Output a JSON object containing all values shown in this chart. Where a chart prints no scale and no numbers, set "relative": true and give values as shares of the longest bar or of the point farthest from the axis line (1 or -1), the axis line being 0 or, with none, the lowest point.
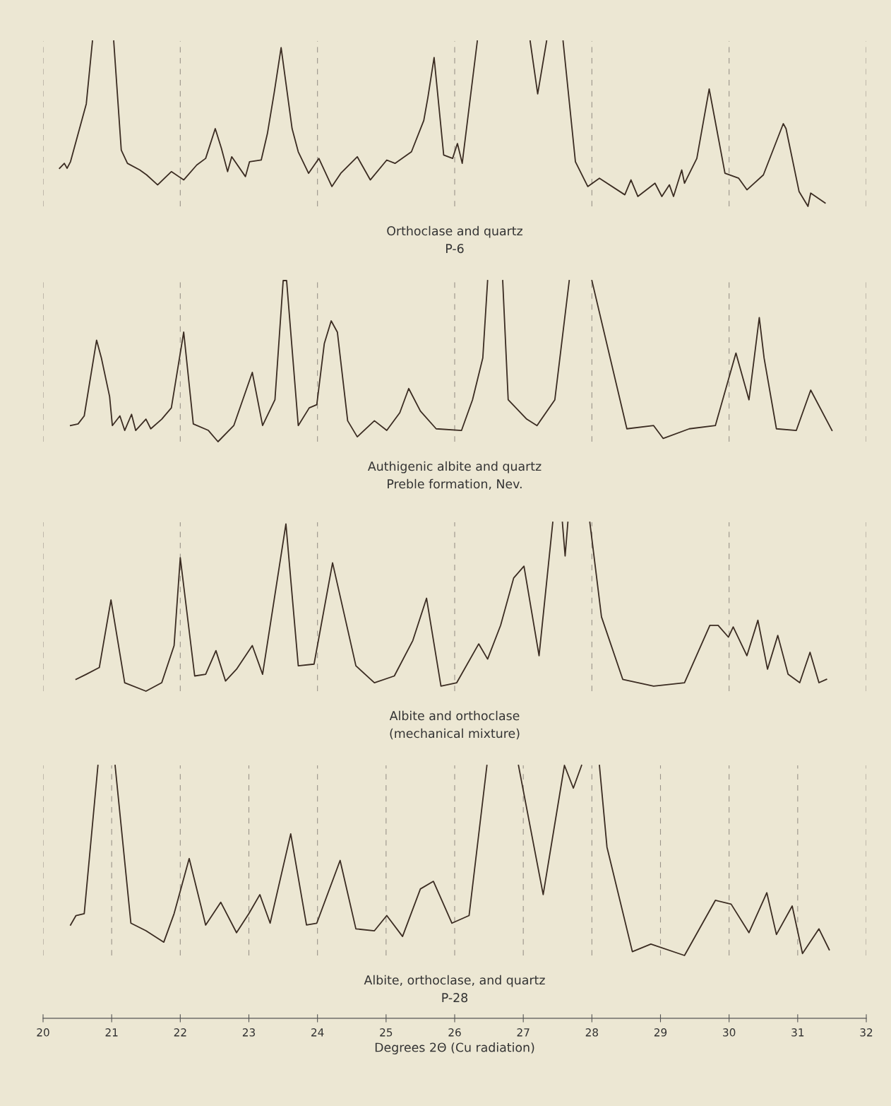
{
  "chart_data": [
    {
      "type": "line",
      "relative": true,
      "title": "Orthoclase and quartz",
      "subtitle": "P-6",
      "xlim": [
        20,
        32
      ],
      "xticks": [
        20,
        22,
        24,
        26,
        28,
        30,
        32
      ],
      "tick_labels": false,
      "grid": "x",
      "marker": "none",
      "line_style": "solid",
      "series": [
        {
          "color": "#3b2c22",
          "x": [
            20.24,
            20.31,
            20.35,
            20.4,
            20.63,
            20.72,
            20.9,
            21.03,
            21.14,
            21.23,
            21.41,
            21.51,
            21.67,
            21.87,
            22.05,
            22.24,
            22.37,
            22.51,
            22.6,
            22.69,
            22.75,
            22.95,
            23.01,
            23.18,
            23.27,
            23.37,
            23.47,
            23.63,
            23.72,
            23.87,
            24.02,
            24.21,
            24.34,
            24.58,
            24.77,
            25.01,
            25.13,
            25.37,
            25.55,
            25.61,
            25.7,
            25.84,
            25.97,
            26.04,
            26.11,
            26.33,
            26.9,
            27.1,
            27.21,
            27.34,
            27.45,
            27.58,
            27.76,
            27.94,
            28.11,
            28.48,
            28.57,
            28.67,
            28.92,
            29.02,
            29.13,
            29.19,
            29.31,
            29.35,
            29.53,
            29.71,
            29.94,
            30.14,
            30.26,
            30.5,
            30.79,
            30.83,
            31.02,
            31.15,
            31.19,
            31.4
          ],
          "values": [
            0.23,
            0.26,
            0.23,
            0.27,
            0.62,
            1.0,
            null,
            1.0,
            0.34,
            0.26,
            0.22,
            0.19,
            0.13,
            0.21,
            0.16,
            0.25,
            0.29,
            0.47,
            0.35,
            0.21,
            0.3,
            0.18,
            0.27,
            0.28,
            0.44,
            0.69,
            0.96,
            0.47,
            0.33,
            0.2,
            0.29,
            0.12,
            0.2,
            0.3,
            0.16,
            0.28,
            0.26,
            0.33,
            0.52,
            0.66,
            0.9,
            0.31,
            0.29,
            0.38,
            0.26,
            1.0,
            null,
            1.0,
            0.68,
            1.0,
            null,
            1.0,
            0.27,
            0.12,
            0.17,
            0.07,
            0.16,
            0.06,
            0.14,
            0.06,
            0.13,
            0.06,
            0.22,
            0.14,
            0.29,
            0.71,
            0.2,
            0.17,
            0.1,
            0.19,
            0.5,
            0.47,
            0.09,
            0,
            0.08,
            0.02
          ]
        }
      ]
    },
    {
      "type": "line",
      "relative": true,
      "title": "Authigenic albite and quartz",
      "subtitle": "Preble formation, Nev.",
      "xlim": [
        20,
        32
      ],
      "xticks": [
        20,
        22,
        24,
        26,
        28,
        30,
        32
      ],
      "tick_labels": false,
      "grid": "x",
      "marker": "none",
      "line_style": "solid",
      "series": [
        {
          "color": "#3b2c22",
          "x": [
            20.4,
            20.51,
            20.6,
            20.78,
            20.85,
            20.97,
            21.01,
            21.12,
            21.19,
            21.29,
            21.35,
            21.5,
            21.57,
            21.73,
            21.87,
            22.05,
            22.19,
            22.41,
            22.55,
            22.78,
            23.05,
            23.2,
            23.38,
            23.5,
            23.55,
            23.72,
            23.88,
            23.99,
            24.1,
            24.2,
            24.29,
            24.44,
            24.58,
            24.83,
            25.01,
            25.2,
            25.33,
            25.5,
            25.73,
            26.1,
            26.26,
            26.41,
            26.48,
            26.6,
            26.7,
            26.78,
            27.05,
            27.2,
            27.46,
            27.67,
            27.8,
            28.0,
            28.51,
            28.9,
            29.04,
            29.42,
            29.8,
            30.1,
            30.29,
            30.44,
            30.51,
            30.69,
            30.98,
            31.19,
            31.5
          ],
          "values": [
            0.1,
            0.11,
            0.16,
            0.63,
            0.52,
            0.28,
            0.1,
            0.16,
            0.07,
            0.17,
            0.07,
            0.14,
            0.08,
            0.14,
            0.21,
            0.68,
            0.11,
            0.07,
            0,
            0.1,
            0.43,
            0.1,
            0.26,
            1.0,
            1.0,
            0.1,
            0.21,
            0.23,
            0.61,
            0.75,
            0.68,
            0.13,
            0.03,
            0.13,
            0.07,
            0.18,
            0.33,
            0.19,
            0.08,
            0.07,
            0.26,
            0.52,
            1.0,
            null,
            1.0,
            0.26,
            0.14,
            0.1,
            0.26,
            1.0,
            null,
            1.0,
            0.08,
            0.1,
            0.02,
            0.08,
            0.1,
            0.55,
            0.26,
            0.77,
            0.52,
            0.08,
            0.07,
            0.32,
            0.07
          ]
        }
      ]
    },
    {
      "type": "line",
      "relative": true,
      "title": "Albite and orthoclase",
      "subtitle": "(mechanical mixture)",
      "xlim": [
        20,
        32
      ],
      "xticks": [
        20,
        22,
        24,
        26,
        28,
        30,
        32
      ],
      "tick_labels": false,
      "grid": "x",
      "marker": "none",
      "line_style": "solid",
      "series": [
        {
          "color": "#3b2c22",
          "x": [
            20.48,
            20.63,
            20.82,
            20.99,
            21.19,
            21.5,
            21.73,
            21.91,
            22.0,
            22.21,
            22.37,
            22.52,
            22.66,
            22.82,
            23.05,
            23.2,
            23.54,
            23.72,
            23.95,
            24.22,
            24.56,
            24.83,
            25.12,
            25.39,
            25.59,
            25.8,
            26.03,
            26.35,
            26.48,
            26.67,
            26.86,
            27.01,
            27.23,
            27.43,
            27.5,
            27.57,
            27.61,
            27.65,
            27.8,
            27.97,
            28.14,
            28.45,
            28.9,
            29.35,
            29.72,
            29.84,
            29.99,
            30.06,
            30.26,
            30.42,
            30.56,
            30.71,
            30.86,
            31.03,
            31.18,
            31.31,
            31.42
          ],
          "values": [
            0.07,
            0.1,
            0.14,
            0.54,
            0.05,
            0,
            0.05,
            0.27,
            0.79,
            0.09,
            0.1,
            0.24,
            0.06,
            0.13,
            0.27,
            0.1,
            0.99,
            0.15,
            0.16,
            0.76,
            0.15,
            0.05,
            0.09,
            0.3,
            0.55,
            0.03,
            0.05,
            0.28,
            0.19,
            0.39,
            0.67,
            0.74,
            0.21,
            1.0,
            null,
            1.0,
            0.8,
            1.0,
            null,
            1.0,
            0.44,
            0.07,
            0.03,
            0.05,
            0.39,
            0.39,
            0.32,
            0.38,
            0.21,
            0.42,
            0.13,
            0.33,
            0.1,
            0.05,
            0.23,
            0.05,
            0.07
          ]
        }
      ]
    },
    {
      "type": "line",
      "relative": true,
      "title": "Albite, orthoclase, and quartz",
      "subtitle": "P-28",
      "xlabel": "Degrees 2Θ (Cu radiation)",
      "xlim": [
        20,
        32
      ],
      "xticks": [
        20,
        21,
        22,
        23,
        24,
        25,
        26,
        27,
        28,
        29,
        30,
        31,
        32
      ],
      "tick_labels": "x",
      "grid": "x",
      "marker": "none",
      "line_style": "solid",
      "series": [
        {
          "color": "#3b2c22",
          "x": [
            20.4,
            20.48,
            20.6,
            20.8,
            20.9,
            21.05,
            21.28,
            21.5,
            21.76,
            21.91,
            22.13,
            22.37,
            22.59,
            22.82,
            23.0,
            23.16,
            23.31,
            23.61,
            23.84,
            23.99,
            24.33,
            24.56,
            24.83,
            25.01,
            25.24,
            25.5,
            25.69,
            25.96,
            26.21,
            26.47,
            26.7,
            26.93,
            27.29,
            27.6,
            27.73,
            27.85,
            28.0,
            28.11,
            28.22,
            28.59,
            28.86,
            29.35,
            29.8,
            30.03,
            30.29,
            30.55,
            30.69,
            30.92,
            31.07,
            31.31,
            31.46
          ],
          "values": [
            0.16,
            0.21,
            0.22,
            1.0,
            null,
            1.0,
            0.17,
            0.13,
            0.07,
            0.22,
            0.51,
            0.16,
            0.28,
            0.12,
            0.22,
            0.32,
            0.17,
            0.64,
            0.16,
            0.17,
            0.5,
            0.14,
            0.13,
            0.21,
            0.1,
            0.35,
            0.39,
            0.17,
            0.21,
            1.0,
            null,
            1.0,
            0.32,
            1.0,
            0.88,
            1.0,
            null,
            1.0,
            0.57,
            0.02,
            0.06,
            0,
            0.29,
            0.27,
            0.12,
            0.33,
            0.11,
            0.26,
            0.01,
            0.14,
            0.03
          ]
        }
      ]
    }
  ]
}
